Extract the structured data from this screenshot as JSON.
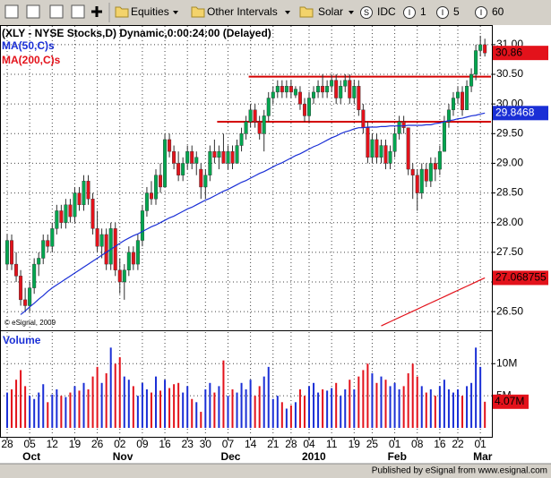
{
  "toolbar": {
    "menus": [
      "Equities",
      "Other Intervals",
      "Solar"
    ],
    "buttons": [
      {
        "icon": "S",
        "label": "IDC"
      },
      {
        "icon": "I",
        "label": "1"
      },
      {
        "icon": "I",
        "label": "5"
      },
      {
        "icon": "I",
        "label": "60"
      }
    ]
  },
  "chart_data": [
    {
      "type": "candlestick",
      "title": "(XLY - NYSE Stocks,D) Dynamic,0:00:24:00 (Delayed)",
      "annotation": "© eSignal, 2009",
      "categories": [
        "28",
        null,
        null,
        null,
        null,
        "05",
        null,
        null,
        null,
        null,
        "12",
        null,
        null,
        null,
        null,
        "19",
        null,
        null,
        null,
        null,
        "26",
        null,
        null,
        null,
        null,
        "02",
        null,
        null,
        null,
        null,
        "09",
        null,
        null,
        null,
        null,
        "16",
        null,
        null,
        null,
        null,
        "23",
        null,
        null,
        null,
        "30",
        null,
        null,
        null,
        null,
        "07",
        null,
        null,
        null,
        null,
        "14",
        null,
        null,
        null,
        null,
        "21",
        null,
        null,
        null,
        "28",
        null,
        null,
        null,
        "04",
        null,
        null,
        null,
        null,
        "11",
        null,
        null,
        null,
        null,
        "19",
        null,
        null,
        null,
        "25",
        null,
        null,
        null,
        null,
        "01",
        null,
        null,
        null,
        null,
        "08",
        null,
        null,
        null,
        null,
        "16",
        null,
        null,
        null,
        "22",
        null,
        null,
        null,
        null,
        "01",
        null
      ],
      "month_labels": [
        "Oct",
        "Nov",
        "Dec",
        "2010",
        "Feb",
        "Mar"
      ],
      "open": [
        27.3,
        27.7,
        27.3,
        27.1,
        26.7,
        26.6,
        26.9,
        27.3,
        27.4,
        27.7,
        27.6,
        27.9,
        28.2,
        28.0,
        28.3,
        28.1,
        28.5,
        28.3,
        28.7,
        28.4,
        27.9,
        27.6,
        27.8,
        27.3,
        27.9,
        27.2,
        27.0,
        27.2,
        27.5,
        27.3,
        27.7,
        28.2,
        28.5,
        28.4,
        28.8,
        28.6,
        29.4,
        29.2,
        29.0,
        28.8,
        29.0,
        29.2,
        29.0,
        28.9,
        28.6,
        28.8,
        29.2,
        29.1,
        29.2,
        29.0,
        29.2,
        29.0,
        29.3,
        29.5,
        29.7,
        29.9,
        29.7,
        29.5,
        29.8,
        30.1,
        30.2,
        30.3,
        30.2,
        30.3,
        30.15,
        30.2,
        30.0,
        29.8,
        30.1,
        30.2,
        30.3,
        30.2,
        30.3,
        30.4,
        30.1,
        30.3,
        30.4,
        30.1,
        30.3,
        29.9,
        29.6,
        29.1,
        29.4,
        29.1,
        29.3,
        29.0,
        29.2,
        29.5,
        29.7,
        29.6,
        28.9,
        28.8,
        28.5,
        28.9,
        28.7,
        29.0,
        28.9,
        29.2,
        29.7,
        29.9,
        30.1,
        30.2,
        29.9,
        30.3,
        30.5,
        30.9,
        31.0
      ],
      "high": [
        27.8,
        27.8,
        27.5,
        27.2,
        26.9,
        27.0,
        27.4,
        27.5,
        27.8,
        27.8,
        28.0,
        28.3,
        28.3,
        28.4,
        28.4,
        28.6,
        28.6,
        28.8,
        28.8,
        28.5,
        28.2,
        27.9,
        27.9,
        28.0,
        28.0,
        27.4,
        27.3,
        27.6,
        27.6,
        27.8,
        28.3,
        28.6,
        28.7,
        28.9,
        29.0,
        29.5,
        29.5,
        29.3,
        29.2,
        29.1,
        29.3,
        29.3,
        29.2,
        29.0,
        28.9,
        29.3,
        29.4,
        29.3,
        29.5,
        29.3,
        29.3,
        29.4,
        29.6,
        29.8,
        30.0,
        30.0,
        29.8,
        29.9,
        30.2,
        30.3,
        30.4,
        30.4,
        30.4,
        30.4,
        30.3,
        30.3,
        30.1,
        30.2,
        30.3,
        30.4,
        30.5,
        30.4,
        30.5,
        30.5,
        30.4,
        30.5,
        30.5,
        30.4,
        30.4,
        30.0,
        29.7,
        29.5,
        29.5,
        29.4,
        29.4,
        29.3,
        29.6,
        29.8,
        29.8,
        29.6,
        29.0,
        28.9,
        29.0,
        29.0,
        29.1,
        29.1,
        29.3,
        29.8,
        30.0,
        30.2,
        30.3,
        30.3,
        30.4,
        30.6,
        31.0,
        31.15,
        31.1
      ],
      "low": [
        27.2,
        27.2,
        27.0,
        26.6,
        26.5,
        26.5,
        26.8,
        27.1,
        27.3,
        27.5,
        27.5,
        27.8,
        27.9,
        27.9,
        28.0,
        28.0,
        28.2,
        28.2,
        28.3,
        27.8,
        27.5,
        27.4,
        27.2,
        27.2,
        27.1,
        26.8,
        26.7,
        27.1,
        27.2,
        27.2,
        27.6,
        28.1,
        28.3,
        28.3,
        28.5,
        28.6,
        29.1,
        28.9,
        28.7,
        28.7,
        28.9,
        28.9,
        28.8,
        28.4,
        28.4,
        28.7,
        29.0,
        28.9,
        29.0,
        28.9,
        28.9,
        29.0,
        29.2,
        29.4,
        29.6,
        29.6,
        29.4,
        29.2,
        29.7,
        30.0,
        30.1,
        30.1,
        30.1,
        30.1,
        30.1,
        29.9,
        29.7,
        29.7,
        30.0,
        30.1,
        30.1,
        30.1,
        30.2,
        30.0,
        30.0,
        30.2,
        30.0,
        30.0,
        29.8,
        29.5,
        29.0,
        29.0,
        29.0,
        29.0,
        28.9,
        28.9,
        29.1,
        29.4,
        29.5,
        28.8,
        28.4,
        28.2,
        28.4,
        28.6,
        28.6,
        28.7,
        28.8,
        29.2,
        29.6,
        29.8,
        30.0,
        29.8,
        29.9,
        30.2,
        30.4,
        30.8,
        30.8
      ],
      "close": [
        27.7,
        27.3,
        27.1,
        26.7,
        26.6,
        26.9,
        27.3,
        27.4,
        27.7,
        27.6,
        27.9,
        28.2,
        28.0,
        28.3,
        28.1,
        28.5,
        28.3,
        28.7,
        28.4,
        27.9,
        27.6,
        27.8,
        27.3,
        27.9,
        27.2,
        27.0,
        27.2,
        27.5,
        27.3,
        27.7,
        28.2,
        28.5,
        28.4,
        28.8,
        28.6,
        29.4,
        29.2,
        29.0,
        28.8,
        29.0,
        29.2,
        29.0,
        29.1,
        28.6,
        28.8,
        29.2,
        29.1,
        29.2,
        29.0,
        29.2,
        29.0,
        29.3,
        29.5,
        29.7,
        29.9,
        29.7,
        29.5,
        29.8,
        30.1,
        30.2,
        30.3,
        30.2,
        30.3,
        30.2,
        30.25,
        30.0,
        29.8,
        30.1,
        30.2,
        30.3,
        30.2,
        30.3,
        30.4,
        30.1,
        30.3,
        30.4,
        30.1,
        30.3,
        29.9,
        29.6,
        29.1,
        29.4,
        29.1,
        29.3,
        29.0,
        29.2,
        29.5,
        29.7,
        29.6,
        28.9,
        28.8,
        28.5,
        28.9,
        28.7,
        29.0,
        28.9,
        29.2,
        29.7,
        29.9,
        30.1,
        30.2,
        29.9,
        30.3,
        30.5,
        30.9,
        31.0,
        30.86
      ],
      "colors": {
        "up": "#00a64f",
        "down": "#e3121b",
        "wick": "#303030"
      },
      "series": [
        {
          "name": "MA(50,C)s",
          "color": "#1a2fd6",
          "values": [
            null,
            null,
            null,
            26.45,
            26.51,
            26.58,
            26.64,
            26.71,
            26.77,
            26.84,
            26.9,
            26.95,
            27.0,
            27.05,
            27.1,
            27.15,
            27.2,
            27.25,
            27.3,
            27.35,
            27.4,
            27.45,
            27.5,
            27.55,
            27.6,
            27.65,
            27.7,
            27.74,
            27.78,
            27.81,
            27.85,
            27.89,
            27.93,
            27.96,
            28.0,
            28.04,
            28.08,
            28.11,
            28.15,
            28.19,
            28.23,
            28.26,
            28.3,
            28.34,
            28.38,
            28.41,
            28.45,
            28.49,
            28.53,
            28.56,
            28.6,
            28.64,
            28.68,
            28.71,
            28.75,
            28.79,
            28.83,
            28.86,
            28.9,
            28.94,
            28.98,
            29.01,
            29.05,
            29.09,
            29.13,
            29.16,
            29.2,
            29.24,
            29.28,
            29.31,
            29.35,
            29.39,
            29.43,
            29.46,
            29.5,
            29.53,
            29.55,
            29.58,
            29.6,
            29.6,
            29.61,
            29.61,
            29.61,
            29.62,
            29.62,
            29.63,
            29.63,
            29.63,
            29.63,
            29.64,
            29.64,
            29.64,
            29.64,
            29.65,
            29.65,
            29.67,
            29.68,
            29.7,
            29.72,
            29.73,
            29.75,
            29.76,
            29.78,
            29.8,
            29.81,
            29.83,
            29.8468
          ]
        },
        {
          "name": "MA(200,C)s",
          "color": "#e3121b",
          "values": [
            null,
            null,
            null,
            null,
            null,
            null,
            null,
            null,
            null,
            null,
            null,
            null,
            null,
            null,
            null,
            null,
            null,
            null,
            null,
            null,
            null,
            null,
            null,
            null,
            null,
            null,
            null,
            null,
            null,
            null,
            null,
            null,
            null,
            null,
            null,
            null,
            null,
            null,
            null,
            null,
            null,
            null,
            null,
            null,
            null,
            null,
            null,
            null,
            null,
            null,
            null,
            null,
            null,
            null,
            null,
            null,
            null,
            null,
            null,
            null,
            null,
            null,
            null,
            null,
            null,
            null,
            null,
            null,
            null,
            null,
            null,
            null,
            null,
            null,
            null,
            null,
            null,
            null,
            null,
            null,
            null,
            null,
            null,
            26.26,
            26.295,
            26.33,
            26.366,
            26.401,
            26.436,
            26.471,
            26.506,
            26.541,
            26.577,
            26.612,
            26.647,
            26.682,
            26.717,
            26.752,
            26.788,
            26.823,
            26.858,
            26.893,
            26.928,
            26.963,
            26.999,
            27.034,
            27.068755
          ]
        }
      ],
      "hlines": [
        {
          "value": 30.46,
          "from": 54,
          "color": "#d40000"
        },
        {
          "value": 29.7,
          "from": 47,
          "color": "#d40000"
        }
      ],
      "ylim": [
        26.2,
        31.3
      ],
      "yticks": [
        {
          "value": 26.5,
          "label": "26.50"
        },
        {
          "value": 27,
          "label": "27.00"
        },
        {
          "value": 27.5,
          "label": "27.50"
        },
        {
          "value": 28,
          "label": "28.00"
        },
        {
          "value": 28.5,
          "label": "28.50"
        },
        {
          "value": 29,
          "label": "29.00"
        },
        {
          "value": 29.5,
          "label": "29.50"
        },
        {
          "value": 30,
          "label": "30.00"
        },
        {
          "value": 30.5,
          "label": "30.50"
        },
        {
          "value": 31,
          "label": "31.00"
        }
      ],
      "grid": true
    },
    {
      "type": "bar",
      "title": "Volume",
      "values": [
        5.5,
        6.0,
        7.5,
        9.0,
        6.5,
        5.0,
        4.5,
        5.5,
        6.8,
        4.0,
        5.2,
        6.0,
        5.0,
        4.8,
        5.5,
        6.5,
        5.8,
        7.0,
        6.0,
        8.0,
        9.5,
        7.0,
        8.5,
        12.5,
        10.0,
        11.0,
        8.0,
        7.5,
        6.5,
        5.0,
        7.0,
        6.0,
        5.5,
        8.0,
        5.8,
        7.5,
        6.2,
        6.8,
        7.0,
        5.5,
        6.5,
        4.5,
        4.0,
        2.5,
        6.0,
        7.0,
        5.5,
        6.5,
        10.5,
        5.0,
        6.0,
        5.5,
        7.0,
        6.0,
        7.5,
        5.0,
        6.5,
        8.0,
        9.5,
        4.5,
        5.0,
        4.0,
        3.0,
        3.5,
        4.0,
        6.0,
        5.0,
        6.5,
        7.0,
        5.5,
        6.0,
        5.8,
        6.2,
        7.0,
        5.0,
        6.0,
        7.5,
        6.0,
        8.0,
        9.0,
        10.0,
        8.5,
        7.0,
        8.0,
        7.5,
        6.5,
        7.0,
        6.0,
        6.5,
        8.5,
        10.0,
        8.0,
        6.5,
        5.5,
        6.0,
        5.0,
        6.5,
        7.5,
        6.0,
        5.5,
        6.0,
        5.0,
        6.5,
        7.0,
        12.5,
        9.5,
        4.07
      ],
      "value_labels": [
        null,
        null,
        null,
        null,
        null,
        null,
        null,
        null,
        null,
        null,
        null,
        null,
        null,
        null,
        null,
        null,
        null,
        null,
        null,
        null,
        null,
        null,
        null,
        null,
        null,
        null,
        null,
        null,
        null,
        null,
        null,
        null,
        null,
        null,
        null,
        null,
        null,
        null,
        null,
        null,
        null,
        null,
        null,
        null,
        null,
        null,
        null,
        null,
        null,
        null,
        null,
        null,
        null,
        null,
        null,
        null,
        null,
        null,
        null,
        null,
        null,
        null,
        null,
        null,
        null,
        null,
        null,
        null,
        null,
        null,
        null,
        null,
        null,
        null,
        null,
        null,
        null,
        null,
        null,
        null,
        null,
        null,
        null,
        null,
        null,
        null,
        null,
        null,
        null,
        null,
        null,
        null,
        null,
        null,
        null,
        null,
        null,
        null,
        null,
        null,
        null,
        null,
        null,
        null,
        null,
        null,
        "4.07M"
      ],
      "colors": {
        "up": "#1a2fd6",
        "down": "#e3121b"
      },
      "ylim": [
        0,
        14.5
      ],
      "yticks": [
        {
          "value": 5,
          "label": "5M"
        },
        {
          "value": 10,
          "label": "10M"
        }
      ],
      "grid": true
    }
  ],
  "footer": "Published by eSignal from www.esignal.com"
}
